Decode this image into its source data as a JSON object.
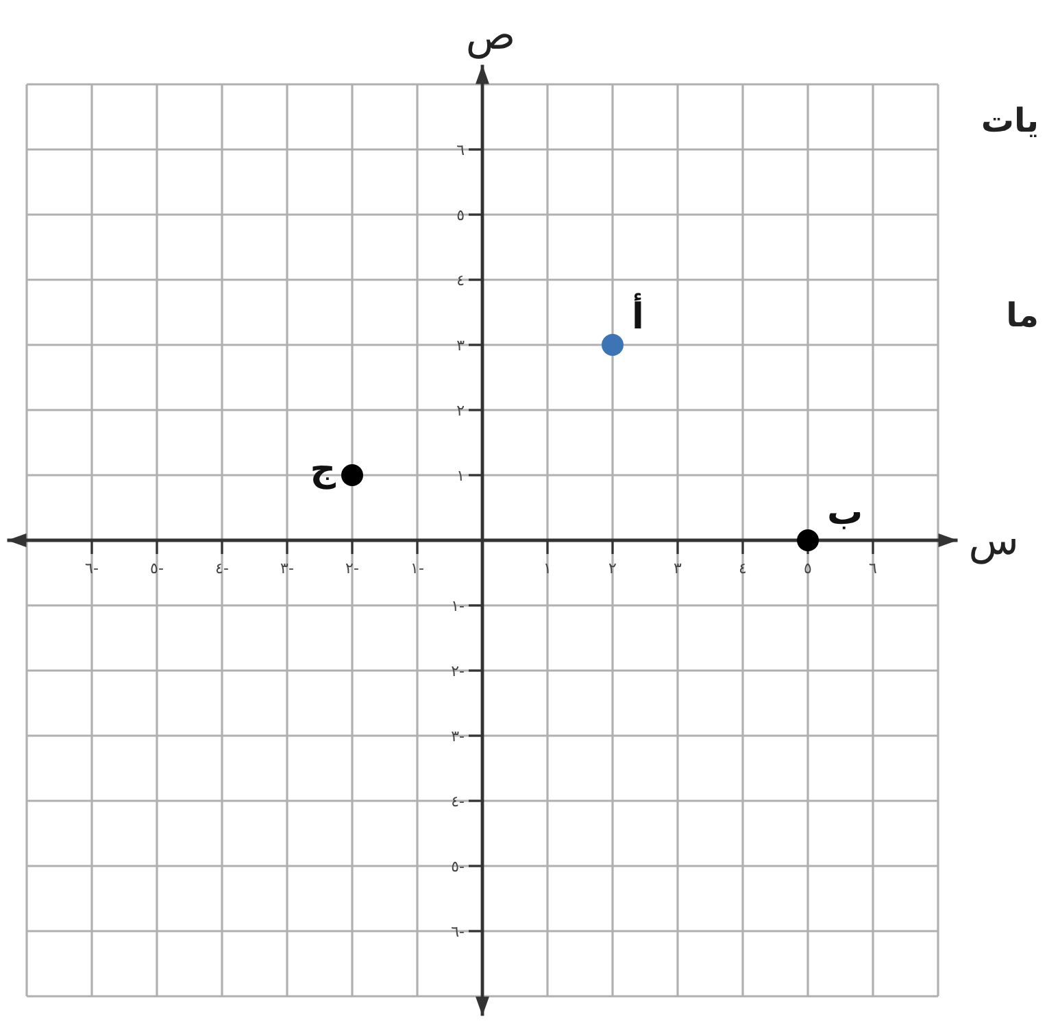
{
  "chart_data": {
    "type": "scatter",
    "xlabel": "س",
    "ylabel": "ص",
    "xlim": [
      -7.3,
      7.3
    ],
    "ylim": [
      -7.3,
      7.3
    ],
    "xticks": [
      {
        "value": -7,
        "label": null
      },
      {
        "value": -6,
        "label": "٦-"
      },
      {
        "value": -5,
        "label": "٥-"
      },
      {
        "value": -4,
        "label": "٤-"
      },
      {
        "value": -3,
        "label": "٣-"
      },
      {
        "value": -2,
        "label": "٢-"
      },
      {
        "value": -1,
        "label": "١-"
      },
      {
        "value": 1,
        "label": "١"
      },
      {
        "value": 2,
        "label": "٢"
      },
      {
        "value": 3,
        "label": "٣"
      },
      {
        "value": 4,
        "label": "٤"
      },
      {
        "value": 5,
        "label": "٥"
      },
      {
        "value": 6,
        "label": "٦"
      },
      {
        "value": 7,
        "label": null
      }
    ],
    "yticks": [
      {
        "value": -7,
        "label": null
      },
      {
        "value": -6,
        "label": "٦-"
      },
      {
        "value": -5,
        "label": "٥-"
      },
      {
        "value": -4,
        "label": "٤-"
      },
      {
        "value": -3,
        "label": "٣-"
      },
      {
        "value": -2,
        "label": "٢-"
      },
      {
        "value": -1,
        "label": "١-"
      },
      {
        "value": 1,
        "label": "١"
      },
      {
        "value": 2,
        "label": "٢"
      },
      {
        "value": 3,
        "label": "٣"
      },
      {
        "value": 4,
        "label": "٤"
      },
      {
        "value": 5,
        "label": "٥"
      },
      {
        "value": 6,
        "label": "٦"
      },
      {
        "value": 7,
        "label": null
      }
    ],
    "grid": true,
    "marker": "circle",
    "series": [
      {
        "name": "أ",
        "color": "#3d74b5",
        "x": [
          2
        ],
        "values": [
          3
        ]
      },
      {
        "name": "ب",
        "color": "#000000",
        "x": [
          5
        ],
        "values": [
          0
        ]
      },
      {
        "name": "ج",
        "color": "#000000",
        "x": [
          -2
        ],
        "values": [
          1
        ]
      }
    ],
    "annotations": [
      "يات",
      "ما"
    ]
  }
}
